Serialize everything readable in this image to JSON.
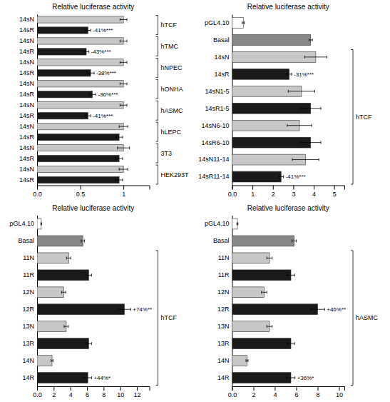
{
  "chart_data": [
    {
      "type": "bar",
      "orientation": "horizontal",
      "title": "Relative luciferase activity",
      "categories": [
        "14sN",
        "14sR",
        "14sN",
        "14sR",
        "14sN",
        "14sR",
        "14sN",
        "14sR",
        "14sN",
        "14sR",
        "14sN",
        "14sR",
        "14sN",
        "14sR",
        "14sN",
        "14sR"
      ],
      "values": [
        1.0,
        0.59,
        1.0,
        0.57,
        1.0,
        0.62,
        1.0,
        0.64,
        1.0,
        0.59,
        1.0,
        0.95,
        1.0,
        0.95,
        1.0,
        0.95
      ],
      "errors": [
        0.04,
        0.03,
        0.04,
        0.03,
        0.04,
        0.04,
        0.04,
        0.04,
        0.04,
        0.03,
        0.05,
        0.04,
        0.07,
        0.04,
        0.05,
        0.04
      ],
      "colors": [
        "#c8c8c8",
        "#1a1a1a",
        "#c8c8c8",
        "#1a1a1a",
        "#c8c8c8",
        "#1a1a1a",
        "#c8c8c8",
        "#1a1a1a",
        "#c8c8c8",
        "#1a1a1a",
        "#c8c8c8",
        "#1a1a1a",
        "#c8c8c8",
        "#1a1a1a",
        "#c8c8c8",
        "#1a1a1a"
      ],
      "groups": [
        {
          "name": "hTCF",
          "start": 0,
          "end": 1
        },
        {
          "name": "hTMC",
          "start": 2,
          "end": 3
        },
        {
          "name": "hNPEC",
          "start": 4,
          "end": 5
        },
        {
          "name": "hONHA",
          "start": 6,
          "end": 7
        },
        {
          "name": "hASMC",
          "start": 8,
          "end": 9
        },
        {
          "name": "hLEPC",
          "start": 10,
          "end": 11
        },
        {
          "name": "3T3",
          "start": 12,
          "end": 13
        },
        {
          "name": "HEK293T",
          "start": 14,
          "end": 15
        }
      ],
      "annotations": [
        {
          "text": "-41%***",
          "index": 1
        },
        {
          "text": "-43%***",
          "index": 3
        },
        {
          "text": "-38%***",
          "index": 5
        },
        {
          "text": "-36%***",
          "index": 7
        },
        {
          "text": "-41%***",
          "index": 9
        }
      ],
      "xlim": [
        0.0,
        1.3
      ],
      "xticks": [
        {
          "value": 0.0,
          "label": "0.0"
        },
        0.5,
        1
      ]
    },
    {
      "type": "bar",
      "orientation": "horizontal",
      "title": "Relative luciferase activity",
      "categories": [
        "pGL4.10",
        "Basal",
        "14sN",
        "14sR",
        "14sN1-5",
        "14sR1-5",
        "14sN6-10",
        "14sR6-10",
        "14sN11-14",
        "14sR11-14"
      ],
      "values": [
        0.55,
        3.85,
        4.1,
        2.8,
        3.4,
        3.85,
        3.3,
        3.85,
        3.6,
        2.4
      ],
      "errors": [
        0.05,
        0.08,
        0.55,
        0.12,
        0.65,
        0.5,
        0.6,
        0.5,
        0.65,
        0.12
      ],
      "colors": [
        "#ffffff",
        "#888888",
        "#c8c8c8",
        "#1a1a1a",
        "#c8c8c8",
        "#1a1a1a",
        "#c8c8c8",
        "#1a1a1a",
        "#c8c8c8",
        "#1a1a1a"
      ],
      "groups": [
        {
          "name": "hTCF",
          "start": 2,
          "end": 9
        }
      ],
      "annotations": [
        {
          "text": "-31%***",
          "index": 3
        },
        {
          "text": "-41%***",
          "index": 9
        }
      ],
      "xlim": [
        0.0,
        5.5
      ],
      "xticks": [
        {
          "value": 0.0,
          "label": "0.0"
        },
        1,
        2,
        3,
        4,
        5
      ]
    },
    {
      "type": "bar",
      "orientation": "horizontal",
      "title": "Relative luciferase activity",
      "categories": [
        "pGL4.10",
        "Basal",
        "11N",
        "11R",
        "12N",
        "12R",
        "13N",
        "13R",
        "14N",
        "14R"
      ],
      "values": [
        0.5,
        5.5,
        3.8,
        6.2,
        3.2,
        10.5,
        3.5,
        6.2,
        1.8,
        6.1
      ],
      "errors": [
        0.05,
        0.2,
        0.25,
        0.35,
        0.25,
        0.75,
        0.25,
        0.35,
        0.12,
        0.45
      ],
      "colors": [
        "#ffffff",
        "#888888",
        "#c8c8c8",
        "#1a1a1a",
        "#c8c8c8",
        "#1a1a1a",
        "#c8c8c8",
        "#1a1a1a",
        "#c8c8c8",
        "#1a1a1a"
      ],
      "groups": [
        {
          "name": "hTCF",
          "start": 2,
          "end": 9
        }
      ],
      "annotations": [
        {
          "text": "+74%**",
          "index": 5
        },
        {
          "text": "+44%*",
          "index": 9
        }
      ],
      "xlim": [
        0.0,
        13.5
      ],
      "xticks": [
        {
          "value": 0.0,
          "label": "0.0"
        },
        2,
        4,
        6,
        8,
        10,
        12
      ]
    },
    {
      "type": "bar",
      "orientation": "horizontal",
      "title": "Relative luciferase activity",
      "categories": [
        "pGL4.10",
        "Basal",
        "11N",
        "11R",
        "12N",
        "12R",
        "13N",
        "13R",
        "14N",
        "14R"
      ],
      "values": [
        0.5,
        5.8,
        3.5,
        5.5,
        3.0,
        8.0,
        3.5,
        5.5,
        1.4,
        5.5
      ],
      "errors": [
        0.05,
        0.2,
        0.25,
        0.35,
        0.25,
        0.65,
        0.25,
        0.35,
        0.1,
        0.38
      ],
      "colors": [
        "#ffffff",
        "#888888",
        "#c8c8c8",
        "#1a1a1a",
        "#c8c8c8",
        "#1a1a1a",
        "#c8c8c8",
        "#1a1a1a",
        "#c8c8c8",
        "#1a1a1a"
      ],
      "groups": [
        {
          "name": "hASMC",
          "start": 2,
          "end": 9
        }
      ],
      "annotations": [
        {
          "text": "+46%**",
          "index": 5
        },
        {
          "text": "+36%*",
          "index": 9
        }
      ],
      "xlim": [
        0.0,
        10.5
      ],
      "xticks": [
        {
          "value": 0.0,
          "label": "0.0"
        },
        2,
        4,
        6,
        8,
        10
      ]
    }
  ]
}
